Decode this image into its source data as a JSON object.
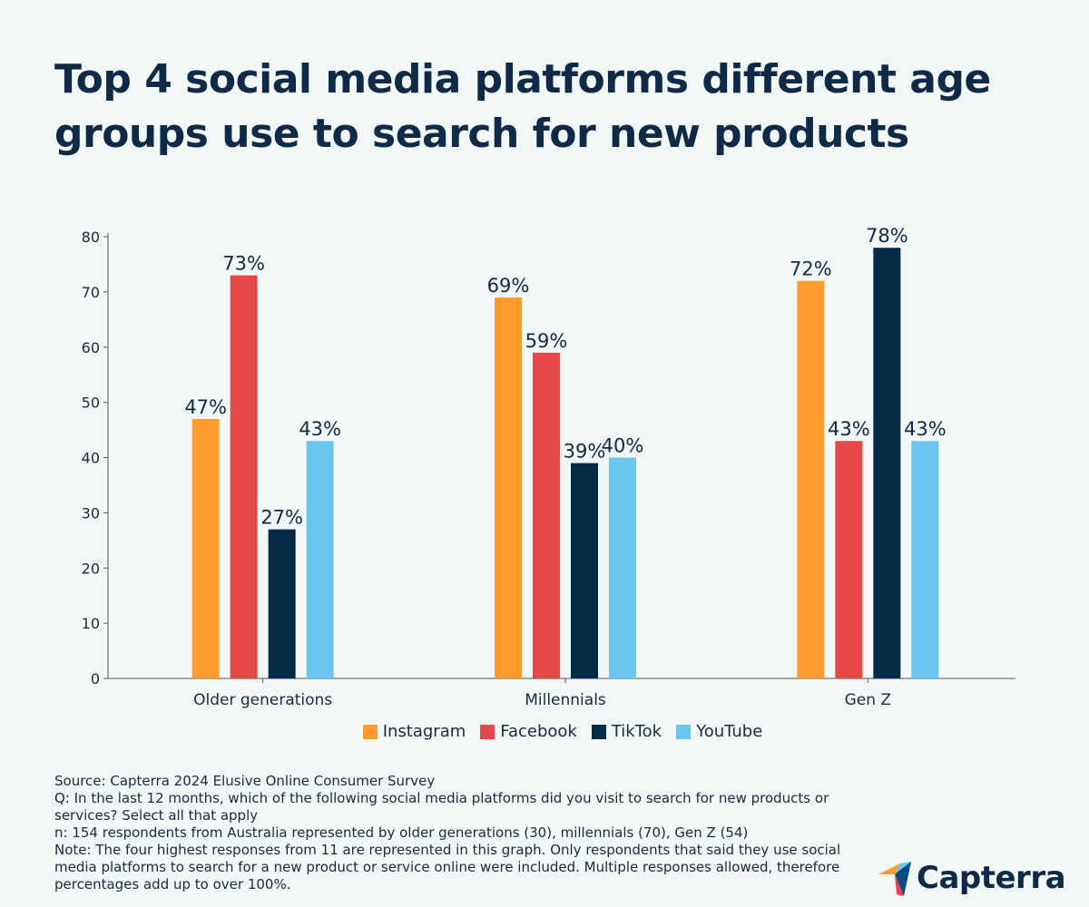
{
  "title": "Top 4 social media platforms different age groups use to search for new products",
  "chart_data": {
    "type": "bar",
    "categories": [
      "Older generations",
      "Millennials",
      "Gen Z"
    ],
    "series": [
      {
        "name": "Instagram",
        "color": "#ff9b2f",
        "values": [
          47,
          69,
          72
        ],
        "labels": [
          "47%",
          "69%",
          "72%"
        ]
      },
      {
        "name": "Facebook",
        "color": "#e44848",
        "values": [
          73,
          59,
          43
        ],
        "labels": [
          "73%",
          "59%",
          "43%"
        ]
      },
      {
        "name": "TikTok",
        "color": "#042b48",
        "values": [
          27,
          39,
          78
        ],
        "labels": [
          "27%",
          "39%",
          "78%"
        ]
      },
      {
        "name": "YouTube",
        "color": "#6bc6ed",
        "values": [
          43,
          40,
          43
        ],
        "labels": [
          "43%",
          "40%",
          "43%"
        ]
      }
    ],
    "ylim": [
      0,
      80
    ],
    "yticks": [
      "0",
      "10",
      "20",
      "30",
      "40",
      "50",
      "60",
      "70",
      "80"
    ],
    "legend_position": "bottom",
    "grid": false
  },
  "footnotes": {
    "source": "Source: Capterra 2024 Elusive Online Consumer Survey",
    "question": "Q: In the last 12 months, which of the following social media platforms did you visit to search for new products or services? Select all that apply",
    "sample": "n: 154 respondents from Australia represented by older generations (30), millennials (70), Gen Z (54)",
    "note": "Note: The four highest responses from 11 are represented in this graph. Only respondents that said they use social media platforms to search for a new product or service online were included. Multiple responses allowed, therefore percentages add up to over 100%."
  },
  "logo": {
    "text": "Capterra",
    "colors": [
      "#ff9d28",
      "#68c5ed",
      "#044d80",
      "#ff3a56"
    ]
  }
}
